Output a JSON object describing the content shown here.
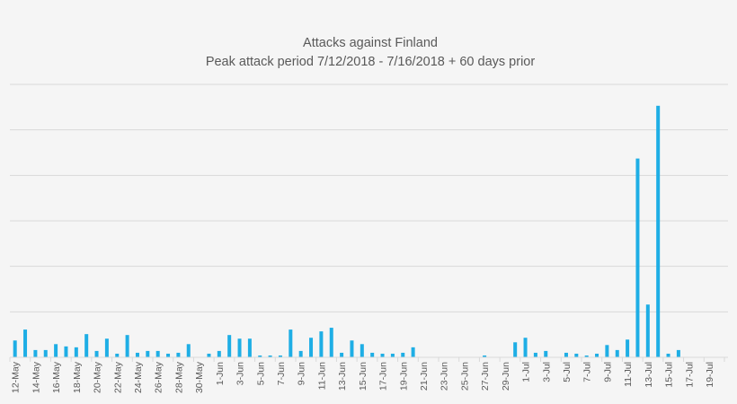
{
  "chart_data": {
    "type": "bar",
    "title": "Attacks against Finland",
    "subtitle": "Peak attack period 7/12/2018 - 7/16/2018 + 60 days prior",
    "x_tick_labels": [
      "12-May",
      "14-May",
      "16-May",
      "18-May",
      "20-May",
      "22-May",
      "24-May",
      "26-May",
      "28-May",
      "30-May",
      "1-Jun",
      "3-Jun",
      "5-Jun",
      "7-Jun",
      "9-Jun",
      "11-Jun",
      "13-Jun",
      "15-Jun",
      "17-Jun",
      "19-Jun",
      "21-Jun",
      "23-Jun",
      "25-Jun",
      "27-Jun",
      "29-Jun",
      "1-Jul",
      "3-Jul",
      "5-Jul",
      "7-Jul",
      "9-Jul",
      "11-Jul",
      "13-Jul",
      "15-Jul",
      "17-Jul",
      "19-Jul"
    ],
    "values": [
      3.7,
      6.1,
      1.6,
      1.6,
      2.9,
      2.4,
      2.2,
      5.1,
      1.4,
      4.1,
      0.8,
      4.9,
      1.0,
      1.4,
      1.4,
      0.8,
      1.0,
      2.9,
      0,
      0.8,
      1.4,
      4.9,
      4.1,
      4.1,
      0.4,
      0.4,
      0.4,
      6.1,
      1.4,
      4.3,
      5.7,
      6.5,
      1.0,
      3.7,
      2.9,
      1.0,
      0.8,
      0.8,
      1.0,
      2.2,
      0,
      0,
      0,
      0,
      0,
      0,
      0.4,
      0,
      0,
      3.3,
      4.3,
      1.0,
      1.4,
      0,
      1.0,
      0.8,
      0.4,
      0.8,
      2.7,
      1.6,
      3.9,
      43.7,
      11.6,
      55.3,
      0.8,
      1.6,
      0,
      0,
      0,
      0
    ],
    "ylim": [
      0,
      60
    ],
    "y_gridline_step": 10,
    "y_tick_labels_shown": false,
    "grid": true,
    "legend": "none",
    "bar_color": "#1eaee5",
    "grid_color": "#d9d9d9"
  }
}
